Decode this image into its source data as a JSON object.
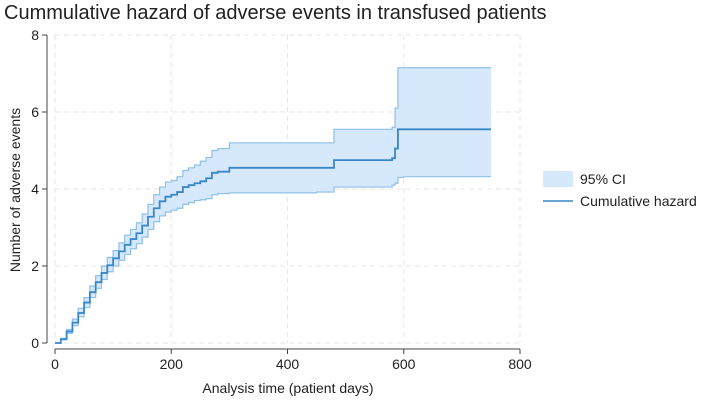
{
  "chart_data": {
    "type": "line",
    "title": "Cummulative hazard of adverse events in transfused patients",
    "xlabel": "Analysis time (patient days)",
    "ylabel": "Number of adverse events",
    "xlim": [
      0,
      800
    ],
    "ylim": [
      0,
      8
    ],
    "xticks": [
      0,
      200,
      400,
      600,
      800
    ],
    "yticks": [
      0,
      2,
      4,
      6,
      8
    ],
    "grid": true,
    "legend_position": "right",
    "colors": {
      "line": "#3a87c8",
      "ci_fill": "#d6e8fb",
      "ci_edge": "#8ec0ea",
      "grid": "#e6e6e6",
      "axis": "#444444"
    },
    "band": {
      "name": "95% CI",
      "x": [
        0,
        10,
        20,
        30,
        40,
        50,
        60,
        70,
        80,
        90,
        100,
        110,
        120,
        130,
        140,
        150,
        160,
        170,
        180,
        190,
        200,
        210,
        220,
        230,
        240,
        250,
        260,
        270,
        280,
        300,
        350,
        400,
        450,
        480,
        500,
        560,
        580,
        585,
        590,
        600,
        650,
        700,
        750
      ],
      "lower": [
        0,
        0.08,
        0.25,
        0.45,
        0.68,
        0.92,
        1.18,
        1.42,
        1.65,
        1.85,
        2.0,
        2.15,
        2.3,
        2.45,
        2.58,
        2.75,
        2.95,
        3.15,
        3.3,
        3.4,
        3.45,
        3.5,
        3.6,
        3.65,
        3.7,
        3.72,
        3.75,
        3.85,
        3.88,
        3.9,
        3.9,
        3.9,
        3.92,
        4.05,
        4.05,
        4.05,
        4.1,
        4.15,
        4.3,
        4.32,
        4.32,
        4.32,
        4.32
      ],
      "upper": [
        0,
        0.12,
        0.35,
        0.62,
        0.9,
        1.18,
        1.48,
        1.75,
        2.0,
        2.22,
        2.4,
        2.6,
        2.8,
        2.95,
        3.12,
        3.35,
        3.6,
        3.85,
        4.05,
        4.18,
        4.22,
        4.32,
        4.48,
        4.55,
        4.62,
        4.72,
        4.82,
        5.0,
        5.05,
        5.2,
        5.2,
        5.2,
        5.2,
        5.55,
        5.55,
        5.55,
        5.6,
        6.1,
        7.15,
        7.15,
        7.15,
        7.15,
        7.15
      ]
    },
    "series": [
      {
        "name": "Cumulative hazard",
        "x": [
          0,
          10,
          20,
          30,
          40,
          50,
          60,
          70,
          80,
          90,
          100,
          110,
          120,
          130,
          140,
          150,
          160,
          170,
          180,
          190,
          200,
          210,
          220,
          230,
          240,
          250,
          260,
          270,
          280,
          300,
          350,
          400,
          450,
          480,
          500,
          560,
          580,
          585,
          590,
          600,
          650,
          700,
          750
        ],
        "y": [
          0,
          0.1,
          0.3,
          0.53,
          0.78,
          1.05,
          1.32,
          1.58,
          1.82,
          2.02,
          2.2,
          2.38,
          2.55,
          2.7,
          2.85,
          3.05,
          3.28,
          3.5,
          3.68,
          3.8,
          3.85,
          3.92,
          4.05,
          4.1,
          4.15,
          4.2,
          4.28,
          4.42,
          4.45,
          4.55,
          4.55,
          4.55,
          4.55,
          4.75,
          4.75,
          4.75,
          4.8,
          5.05,
          5.55,
          5.55,
          5.55,
          5.55,
          5.55
        ]
      }
    ]
  }
}
